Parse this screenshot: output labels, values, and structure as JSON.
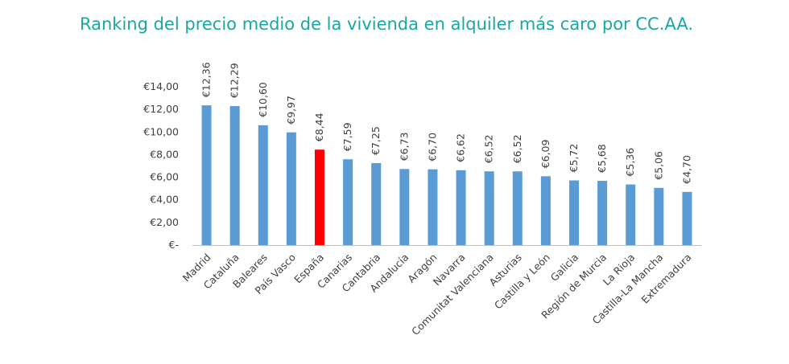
{
  "chart_data": {
    "type": "bar",
    "title": "Ranking del precio medio de la vivienda en alquiler más caro por CC.AA.",
    "xlabel": "",
    "ylabel": "",
    "categories": [
      "Madrid",
      "Cataluña",
      "Baleares",
      "País Vasco",
      "España",
      "Canarias",
      "Cantabria",
      "Andalucía",
      "Aragón",
      "Navarra",
      "Comunitat Valenciana",
      "Asturias",
      "Castilla y León",
      "Galicia",
      "Región de Murcia",
      "La Rioja",
      "Castilla-La Mancha",
      "Extremadura"
    ],
    "values": [
      12.36,
      12.29,
      10.6,
      9.97,
      8.44,
      7.59,
      7.25,
      6.73,
      6.7,
      6.62,
      6.52,
      6.52,
      6.09,
      5.72,
      5.68,
      5.36,
      5.06,
      4.7
    ],
    "data_labels": [
      "€12,36",
      "€12,29",
      "€10,60",
      "€9,97",
      "€8,44",
      "€7,59",
      "€7,25",
      "€6,73",
      "€6,70",
      "€6,62",
      "€6,52",
      "€6,52",
      "€6,09",
      "€5,72",
      "€5,68",
      "€5,36",
      "€5,06",
      "€4,70"
    ],
    "y_ticks": [
      0,
      2,
      4,
      6,
      8,
      10,
      12,
      14
    ],
    "y_tick_labels": [
      "€-",
      "€2,00",
      "€4,00",
      "€6,00",
      "€8,00",
      "€10,00",
      "€12,00",
      "€14,00"
    ],
    "ylim": [
      0,
      14
    ],
    "grid": false,
    "legend": "none",
    "colors": {
      "bar": "#5b9bd5",
      "highlight": "#ff0000",
      "axis": "#bfbfbf",
      "text": "#404040",
      "title": "#1aa7a0"
    },
    "highlight_category": "España"
  }
}
